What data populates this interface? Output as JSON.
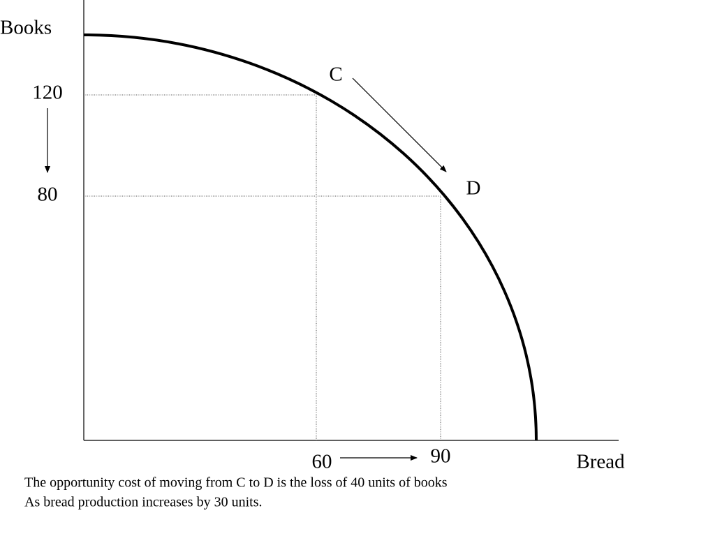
{
  "y_axis": {
    "label": "Books",
    "ticks": [
      120,
      80
    ]
  },
  "x_axis": {
    "label": "Bread",
    "ticks": [
      60,
      90
    ]
  },
  "points": [
    {
      "label": "C"
    },
    {
      "label": "D"
    }
  ],
  "caption": [
    "The opportunity cost of moving from C to D is the loss of 40 units of books",
    "As bread production increases by 30 units."
  ]
}
